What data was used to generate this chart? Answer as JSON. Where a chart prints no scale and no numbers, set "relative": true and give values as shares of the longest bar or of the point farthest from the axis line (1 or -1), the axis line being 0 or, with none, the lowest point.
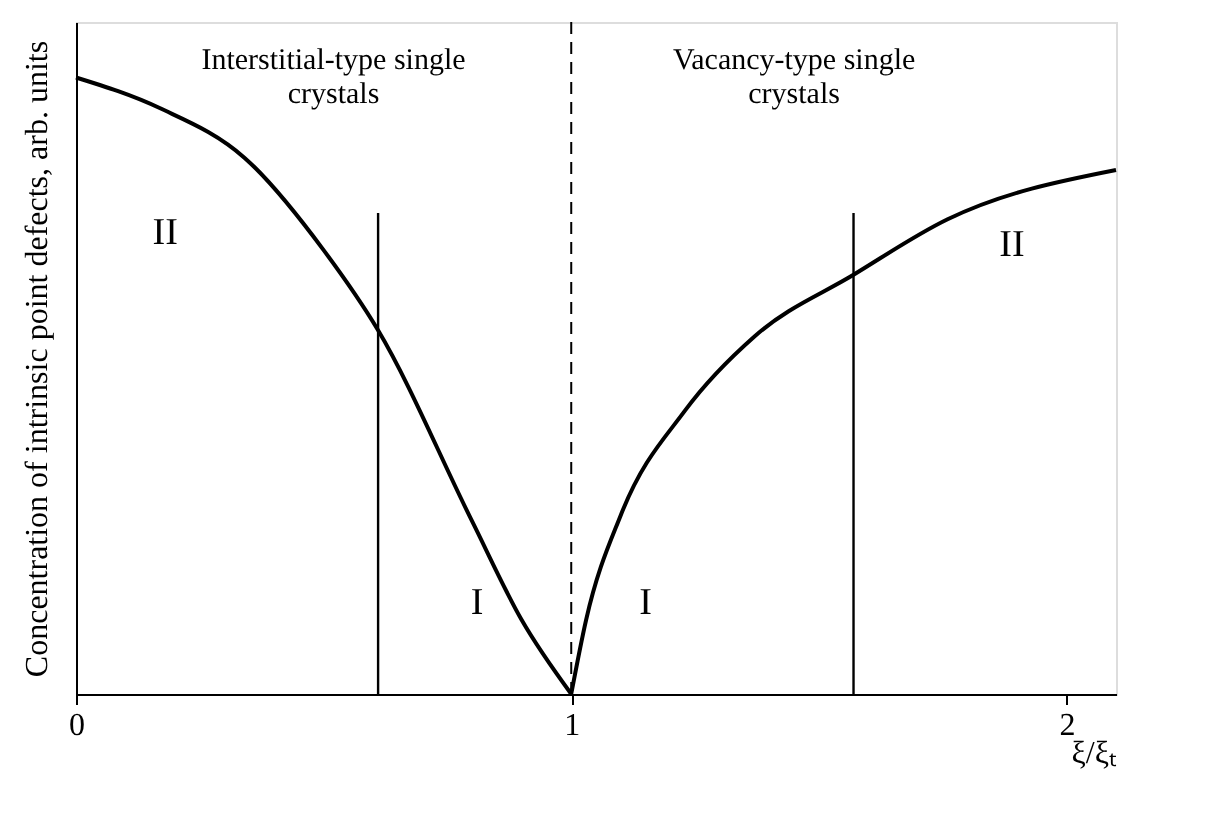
{
  "chart_data": {
    "type": "line",
    "relative": true,
    "xlabel": "ξ/ξₜ",
    "ylabel": "Concentration of intrinsic point defects, arb. units",
    "xlim": [
      0,
      2.1
    ],
    "xticks": [
      0,
      1,
      2
    ],
    "grid": false,
    "legend": false,
    "marker": "none",
    "line_style": "solid",
    "series": [
      {
        "color": "#000000",
        "x": [
          0,
          0.17,
          0.34,
          0.5,
          0.61,
          0.8,
          0.9,
          1.0
        ],
        "values": [
          1,
          0.95,
          0.87,
          0.72,
          0.59,
          0.28,
          0.12,
          0
        ]
      },
      {
        "color": "#000000",
        "x": [
          1.0,
          1.03,
          1.1,
          1.23,
          1.37,
          1.57,
          1.76,
          2.1
        ],
        "values": [
          0,
          0.12,
          0.29,
          0.46,
          0.58,
          0.68,
          0.77,
          0.85
        ]
      },
      {
        "color": "#000000",
        "x": [
          0.61,
          0.61
        ],
        "values": [
          0,
          0.78
        ]
      },
      {
        "color": "#000000",
        "x": [
          1.57,
          1.57
        ],
        "values": [
          0,
          0.78
        ]
      }
    ],
    "ref_lines": [
      {
        "axis": "x",
        "value": 1,
        "color": "#000000",
        "line_style": "dashed"
      }
    ],
    "annotations": [
      "Interstitial-type single\ncrystals",
      "Vacancy-type single\ncrystals",
      "II",
      "I",
      "I",
      "II"
    ]
  }
}
